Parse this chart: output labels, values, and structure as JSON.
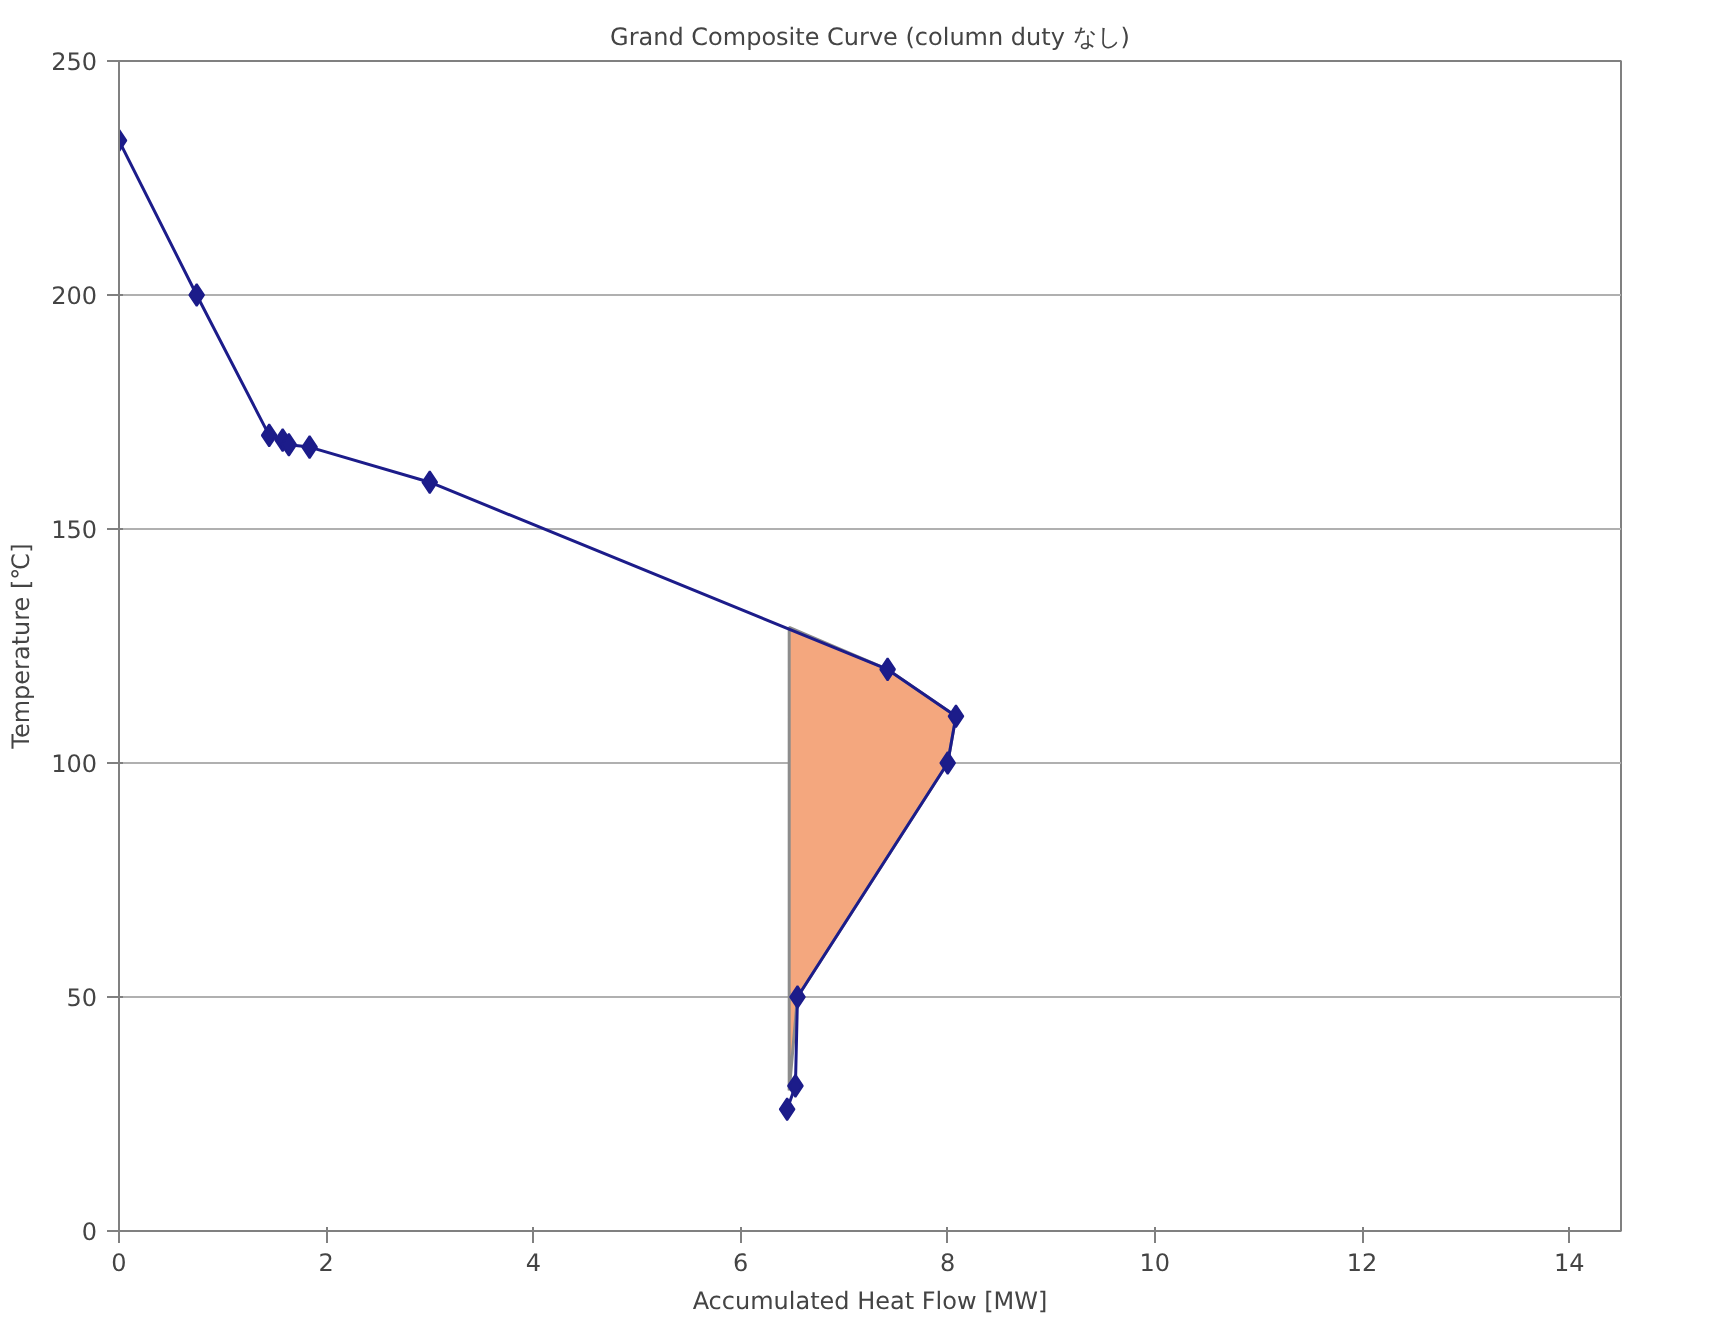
{
  "chart_data": {
    "type": "line",
    "title": "Grand Composite Curve (column duty なし)",
    "xlabel": "Accumulated Heat Flow [MW]",
    "ylabel": "Temperature [℃]",
    "xlim": [
      0,
      14.5
    ],
    "xticks": [
      0,
      2,
      4,
      6,
      8,
      10,
      12,
      14
    ],
    "ylim": [
      0,
      250
    ],
    "yticks": [
      0,
      50,
      100,
      150,
      200,
      250
    ],
    "grid": "y",
    "marker": "diamond",
    "line_style": "solid",
    "series": [
      {
        "type": "area",
        "color": "#f4a77e",
        "marker": "none",
        "x": [
          6.47,
          7.42,
          8.08,
          8.0,
          6.55,
          6.47
        ],
        "values": [
          129,
          120,
          110,
          100,
          50,
          30
        ]
      },
      {
        "color": "#1c1c8a",
        "x": [
          0,
          0.75,
          1.45,
          1.58,
          1.64,
          1.84,
          3.0,
          7.42,
          8.08,
          8.0,
          6.55,
          6.53,
          6.45
        ],
        "values": [
          233,
          200,
          170,
          169,
          168,
          167.5,
          160,
          120,
          110,
          100,
          50,
          31,
          26
        ]
      }
    ]
  }
}
